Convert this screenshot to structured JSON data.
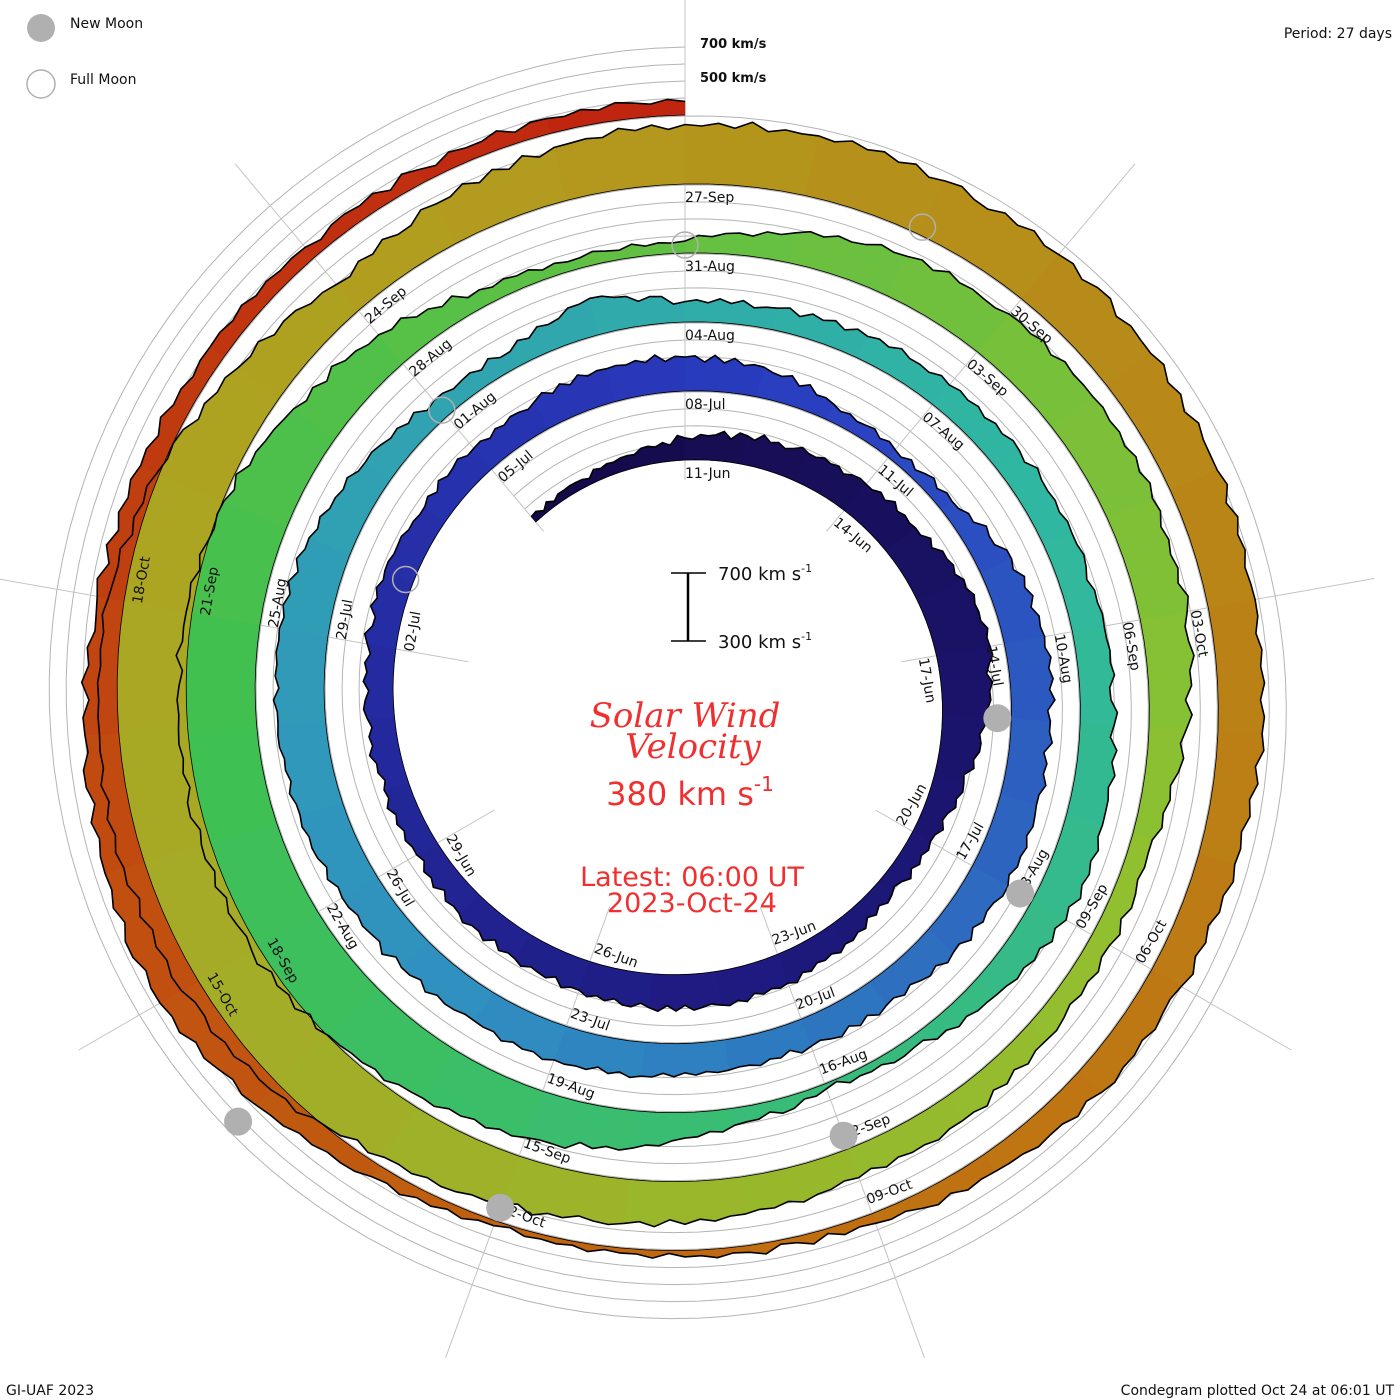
{
  "legend": {
    "new_moon": "New Moon",
    "full_moon": "Full Moon"
  },
  "period_label": "Period: 27 days",
  "footer_left": "GI-UAF 2023",
  "footer_right": "Condegram plotted Oct 24 at 06:01 UT",
  "center": {
    "title_line1": "Solar Wind",
    "title_line2": "Velocity",
    "current_value": "380 km s",
    "current_unit_exp": "-1",
    "latest_label": "Latest: 06:00 UT",
    "latest_date": "2023-Oct-24",
    "scale_top": "700 km s",
    "scale_bottom": "300 km s",
    "scale_exp": "-1"
  },
  "colors": {
    "text_accent": "#f03030",
    "stops": [
      "#140a48",
      "#1e1a80",
      "#2a3cc0",
      "#3090c0",
      "#30b8a0",
      "#40c050",
      "#90c030",
      "#b0a020",
      "#c07010",
      "#c02010"
    ]
  },
  "chart_data": {
    "type": "spiral-condegram",
    "title": "Solar Wind Velocity",
    "period_days": 27,
    "start_date": "2023-06-08",
    "reference_date": "2023-06-11",
    "units": "km/s",
    "baseline": 300,
    "grid_levels": [
      300,
      400,
      500,
      600,
      700
    ],
    "grid_labels": {
      "700": "700 km/s",
      "500": "500 km/s"
    },
    "values": [
      340,
      350,
      380,
      430,
      470,
      480,
      500,
      520,
      600,
      620,
      560,
      480,
      420,
      410,
      440,
      480,
      500,
      500,
      480,
      470,
      460,
      440,
      450,
      460,
      470,
      480,
      450,
      460,
      480,
      500,
      500,
      480,
      400,
      360,
      380,
      500,
      540,
      530,
      520,
      540,
      500,
      470,
      470,
      480,
      500,
      510,
      500,
      520,
      540,
      560,
      580,
      590,
      560,
      480,
      420,
      400,
      520,
      420,
      430,
      440,
      450,
      470,
      480,
      490,
      500,
      520,
      530,
      450,
      360,
      330,
      400,
      520,
      590,
      640,
      700,
      750,
      760,
      760,
      740,
      700,
      600,
      520,
      400,
      360,
      370,
      480,
      560,
      590,
      600,
      590,
      580,
      520,
      420,
      420,
      440,
      470,
      480,
      520,
      560,
      600,
      650,
      760,
      820,
      830,
      820,
      800,
      720,
      600,
      500,
      560,
      620,
      650,
      660,
      650,
      640,
      620,
      600,
      580,
      560,
      520,
      500,
      480,
      420,
      360,
      340,
      330,
      330,
      380,
      480,
      560,
      540,
      500,
      460,
      420,
      400,
      380,
      380,
      390,
      380
    ],
    "date_labels": [
      "11-Jun",
      "14-Jun",
      "17-Jun",
      "20-Jun",
      "23-Jun",
      "26-Jun",
      "29-Jun",
      "02-Jul",
      "05-Jul",
      "08-Jul",
      "11-Jul",
      "14-Jul",
      "17-Jul",
      "20-Jul",
      "23-Jul",
      "26-Jul",
      "29-Jul",
      "01-Aug",
      "04-Aug",
      "07-Aug",
      "10-Aug",
      "13-Aug",
      "16-Aug",
      "19-Aug",
      "22-Aug",
      "25-Aug",
      "28-Aug",
      "31-Aug",
      "03-Sep",
      "06-Sep",
      "09-Sep",
      "12-Sep",
      "15-Sep",
      "18-Sep",
      "21-Sep",
      "24-Sep",
      "27-Sep",
      "30-Sep",
      "03-Oct",
      "06-Oct",
      "09-Oct",
      "12-Oct",
      "15-Oct",
      "18-Oct"
    ],
    "new_moons": [
      "2023-06-18",
      "2023-07-17",
      "2023-08-16",
      "2023-09-15",
      "2023-10-14"
    ],
    "full_moons": [
      "2023-07-03",
      "2023-08-01",
      "2023-08-31",
      "2023-09-29"
    ]
  }
}
